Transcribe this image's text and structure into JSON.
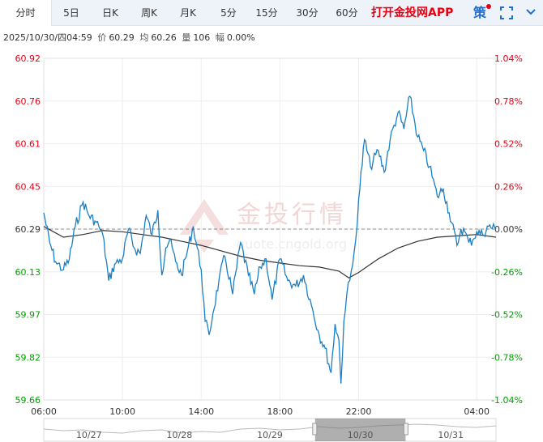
{
  "tabs": [
    {
      "label": "分时",
      "active": true
    },
    {
      "label": "5日"
    },
    {
      "label": "日K"
    },
    {
      "label": "周K"
    },
    {
      "label": "月K"
    },
    {
      "label": "5分"
    },
    {
      "label": "15分"
    },
    {
      "label": "30分"
    },
    {
      "label": "60分"
    }
  ],
  "promo_label": "打开金投网APP",
  "strategy_label": "策",
  "info": {
    "datetime": "2025/10/30/四04:59",
    "price_label": "价",
    "price": "60.29",
    "avg_label": "均",
    "avg": "60.26",
    "volume_label": "量",
    "volume": "106",
    "change_label": "幅",
    "change": "0.00%"
  },
  "watermark": {
    "name": "金投行情",
    "url": "quote.cngold.org"
  },
  "colors": {
    "price_line": "#1a7fc4",
    "avg_line": "#333333",
    "up": "#e60012",
    "down": "#00a000",
    "ref_line": "#888888"
  },
  "chart_data": {
    "type": "line",
    "reference_price": 60.29,
    "ylim": [
      59.66,
      60.92
    ],
    "y_ticks_left": [
      "60.92",
      "60.76",
      "60.61",
      "60.45",
      "60.29",
      "60.13",
      "59.97",
      "59.82",
      "59.66"
    ],
    "y_ticks_right": [
      "1.04%",
      "0.78%",
      "0.52%",
      "0.26%",
      "0.00%",
      "-0.26%",
      "-0.52%",
      "-0.78%",
      "-1.04%"
    ],
    "x_range_hours": [
      6,
      28.98
    ],
    "x_ticks": [
      "06:00",
      "10:00",
      "14:00",
      "18:00",
      "22:00",
      "04:00"
    ],
    "x_tick_hours": [
      6,
      10,
      14,
      18,
      22,
      28
    ],
    "price": {
      "hours": [
        6.0,
        6.3,
        6.6,
        7.0,
        7.3,
        7.6,
        8.0,
        8.3,
        8.6,
        8.8,
        9.0,
        9.3,
        9.6,
        10.0,
        10.3,
        10.6,
        10.9,
        11.2,
        11.5,
        11.8,
        12.0,
        12.2,
        12.4,
        12.7,
        13.0,
        13.3,
        13.6,
        14.0,
        14.2,
        14.4,
        14.6,
        14.9,
        15.2,
        15.6,
        16.0,
        16.4,
        16.7,
        17.0,
        17.3,
        17.6,
        18.0,
        18.4,
        18.8,
        19.2,
        19.6,
        20.0,
        20.3,
        20.6,
        20.8,
        21.0,
        21.1,
        21.25,
        21.4,
        21.55,
        21.7,
        21.85,
        22.0,
        22.3,
        22.6,
        23.0,
        23.3,
        23.6,
        24.0,
        24.3,
        24.6,
        25.0,
        25.3,
        25.6,
        26.0,
        26.3,
        26.6,
        27.0,
        27.2,
        27.4,
        27.6,
        27.8,
        28.0,
        28.3,
        28.6,
        28.98
      ],
      "values": [
        60.35,
        60.24,
        60.17,
        60.14,
        60.18,
        60.3,
        60.39,
        60.34,
        60.32,
        60.3,
        60.27,
        60.1,
        60.16,
        60.18,
        60.29,
        60.22,
        60.2,
        60.34,
        60.27,
        60.36,
        60.12,
        60.22,
        60.25,
        60.17,
        60.12,
        60.21,
        60.3,
        60.14,
        59.95,
        59.9,
        59.98,
        60.1,
        60.19,
        60.05,
        60.24,
        60.12,
        60.05,
        60.15,
        60.18,
        60.03,
        60.18,
        60.1,
        60.08,
        60.12,
        60.01,
        59.9,
        59.85,
        59.76,
        59.94,
        59.88,
        59.72,
        59.95,
        60.05,
        60.1,
        60.16,
        60.25,
        60.4,
        60.62,
        60.52,
        60.58,
        60.5,
        60.62,
        60.72,
        60.66,
        60.78,
        60.63,
        60.58,
        60.52,
        60.41,
        60.44,
        60.35,
        60.23,
        60.29,
        60.28,
        60.24,
        60.25,
        60.28,
        60.27,
        60.3,
        60.29
      ]
    },
    "average": {
      "hours": [
        6.0,
        7.0,
        8.0,
        9.0,
        10.0,
        11.0,
        12.0,
        13.0,
        14.0,
        15.0,
        16.0,
        17.0,
        18.0,
        19.0,
        20.0,
        21.0,
        21.5,
        22.0,
        23.0,
        24.0,
        25.0,
        26.0,
        27.0,
        28.0,
        28.98
      ],
      "values": [
        60.3,
        60.26,
        60.27,
        60.285,
        60.28,
        60.27,
        60.26,
        60.245,
        60.23,
        60.21,
        60.19,
        60.175,
        60.165,
        60.155,
        60.15,
        60.135,
        60.11,
        60.13,
        60.18,
        60.22,
        60.245,
        60.26,
        60.265,
        60.27,
        60.26
      ]
    },
    "navigator": {
      "labels": [
        "10/27",
        "10/28",
        "10/29",
        "10/30",
        "10/31"
      ],
      "values": [
        0.55,
        0.45,
        0.5,
        0.35,
        0.3,
        0.45,
        0.5,
        0.3,
        0.4,
        0.35,
        0.55,
        0.6,
        0.5,
        0.55,
        0.7,
        0.6,
        0.65,
        0.75,
        0.8,
        0.85,
        0.8,
        0.7,
        0.65,
        0.75
      ],
      "selected_label": "10/30"
    }
  }
}
